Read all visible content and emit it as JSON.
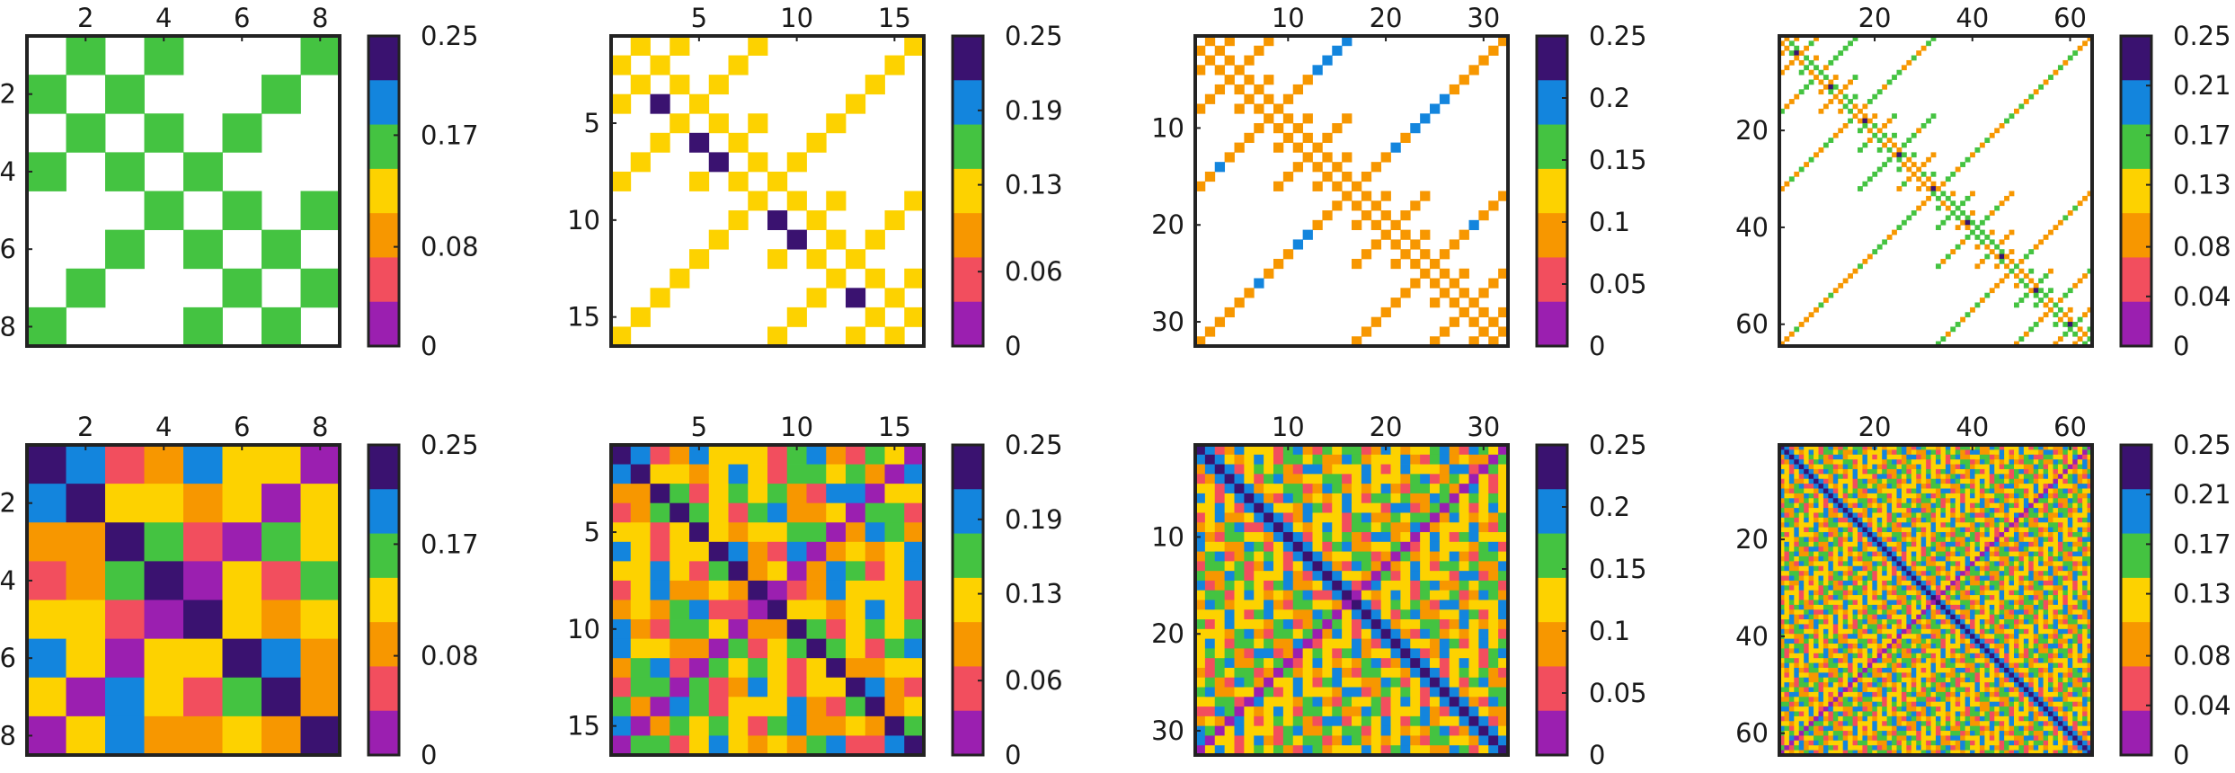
{
  "figure_title": "",
  "palette": {
    "white": "#ffffff",
    "purple": "#9B1FB0",
    "red": "#F24E5E",
    "orange": "#F79700",
    "yellow": "#FDD200",
    "green": "#44C341",
    "blue": "#1385DD",
    "dark": "#3A1270"
  },
  "chart_data": [
    {
      "type": "heatmap",
      "title": "",
      "row": "top",
      "col": 1,
      "n": 8,
      "pattern": "sparse",
      "xticks": [
        "2",
        "4",
        "6",
        "8"
      ],
      "yticks": [
        "2",
        "4",
        "6",
        "8"
      ],
      "colorbar": {
        "range": [
          0,
          0.25
        ],
        "ticks": [
          "0.25",
          "0.17",
          "0.08",
          "0"
        ]
      }
    },
    {
      "type": "heatmap",
      "title": "",
      "row": "top",
      "col": 2,
      "n": 16,
      "pattern": "sparse",
      "xticks": [
        "5",
        "10",
        "15"
      ],
      "yticks": [
        "5",
        "10",
        "15"
      ],
      "colorbar": {
        "range": [
          0,
          0.25
        ],
        "ticks": [
          "0.25",
          "0.19",
          "0.13",
          "0.06",
          "0"
        ]
      }
    },
    {
      "type": "heatmap",
      "title": "",
      "row": "top",
      "col": 3,
      "n": 32,
      "pattern": "sparse",
      "xticks": [
        "10",
        "20",
        "30"
      ],
      "yticks": [
        "10",
        "20",
        "30"
      ],
      "colorbar": {
        "range": [
          0,
          0.25
        ],
        "ticks": [
          "0.25",
          "0.2",
          "0.15",
          "0.1",
          "0.05",
          "0"
        ]
      }
    },
    {
      "type": "heatmap",
      "title": "",
      "row": "top",
      "col": 4,
      "n": 64,
      "pattern": "sparse",
      "xticks": [
        "20",
        "40",
        "60"
      ],
      "yticks": [
        "20",
        "40",
        "60"
      ],
      "colorbar": {
        "range": [
          0,
          0.25
        ],
        "ticks": [
          "0.25",
          "0.21",
          "0.17",
          "0.13",
          "0.08",
          "0.04",
          "0"
        ]
      }
    },
    {
      "type": "heatmap",
      "title": "",
      "row": "bottom",
      "col": 1,
      "n": 8,
      "pattern": "dense",
      "xticks": [
        "2",
        "4",
        "6",
        "8"
      ],
      "yticks": [
        "2",
        "4",
        "6",
        "8"
      ],
      "colorbar": {
        "range": [
          0,
          0.25
        ],
        "ticks": [
          "0.25",
          "0.17",
          "0.08",
          "0"
        ]
      }
    },
    {
      "type": "heatmap",
      "title": "",
      "row": "bottom",
      "col": 2,
      "n": 16,
      "pattern": "dense",
      "xticks": [
        "5",
        "10",
        "15"
      ],
      "yticks": [
        "5",
        "10",
        "15"
      ],
      "colorbar": {
        "range": [
          0,
          0.25
        ],
        "ticks": [
          "0.25",
          "0.19",
          "0.13",
          "0.06",
          "0"
        ]
      }
    },
    {
      "type": "heatmap",
      "title": "",
      "row": "bottom",
      "col": 3,
      "n": 32,
      "pattern": "dense",
      "xticks": [
        "10",
        "20",
        "30"
      ],
      "yticks": [
        "10",
        "20",
        "30"
      ],
      "colorbar": {
        "range": [
          0,
          0.25
        ],
        "ticks": [
          "0.25",
          "0.2",
          "0.15",
          "0.1",
          "0.05",
          "0"
        ]
      }
    },
    {
      "type": "heatmap",
      "title": "",
      "row": "bottom",
      "col": 4,
      "n": 64,
      "pattern": "dense",
      "xticks": [
        "20",
        "40",
        "60"
      ],
      "yticks": [
        "20",
        "40",
        "60"
      ],
      "colorbar": {
        "range": [
          0,
          0.25
        ],
        "ticks": [
          "0.25",
          "0.21",
          "0.17",
          "0.13",
          "0.08",
          "0.04",
          "0"
        ]
      }
    }
  ]
}
